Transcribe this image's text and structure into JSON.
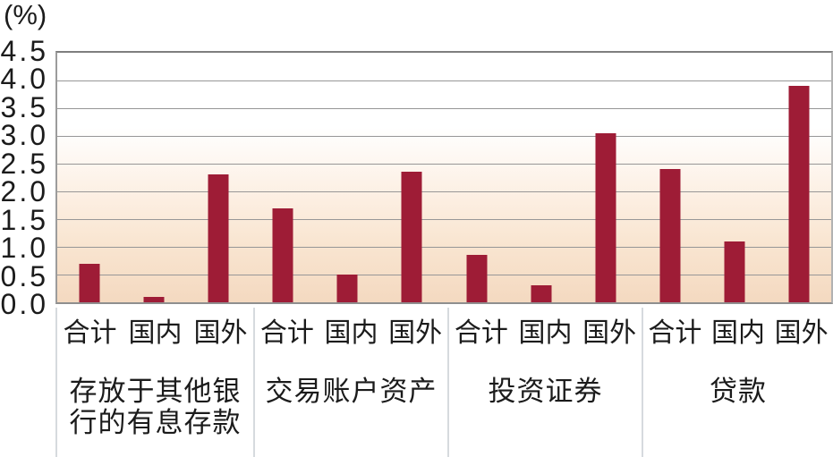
{
  "chart_data": {
    "type": "bar",
    "title": "",
    "unit_label": "(%)",
    "ylabel": "(%)",
    "xlabel": "",
    "ylim": [
      0,
      4.5
    ],
    "grid": true,
    "legend": false,
    "y_tick_labels": [
      "4.5",
      "4.0",
      "3.5",
      "3.0",
      "2.5",
      "2.0",
      "1.5",
      "1.0",
      "0.5",
      "0.0"
    ],
    "sub_categories": [
      "合计",
      "国内",
      "国外"
    ],
    "groups": [
      {
        "title": "存放于其他银行的有息存款",
        "title_lines": [
          "存放于其他银",
          "行的有息存款"
        ],
        "values": [
          0.7,
          0.1,
          2.3
        ]
      },
      {
        "title": "交易账户资产",
        "title_lines": [
          "交易账户资产"
        ],
        "values": [
          1.7,
          0.5,
          2.35
        ]
      },
      {
        "title": "投资证券",
        "title_lines": [
          "投资证券"
        ],
        "values": [
          0.85,
          0.3,
          3.05
        ]
      },
      {
        "title": "贷款",
        "title_lines": [
          "贷款"
        ],
        "values": [
          2.4,
          1.1,
          3.9
        ]
      }
    ],
    "colors": {
      "bar": "#9e1c36",
      "grid_line": "#979797",
      "plot_border": "#7e7e7e",
      "label_divider": "#d6dade",
      "text": "#1b1b1b",
      "plot_bg_top": "#ffffff",
      "plot_bg_bottom": "#f4d9c0"
    }
  }
}
